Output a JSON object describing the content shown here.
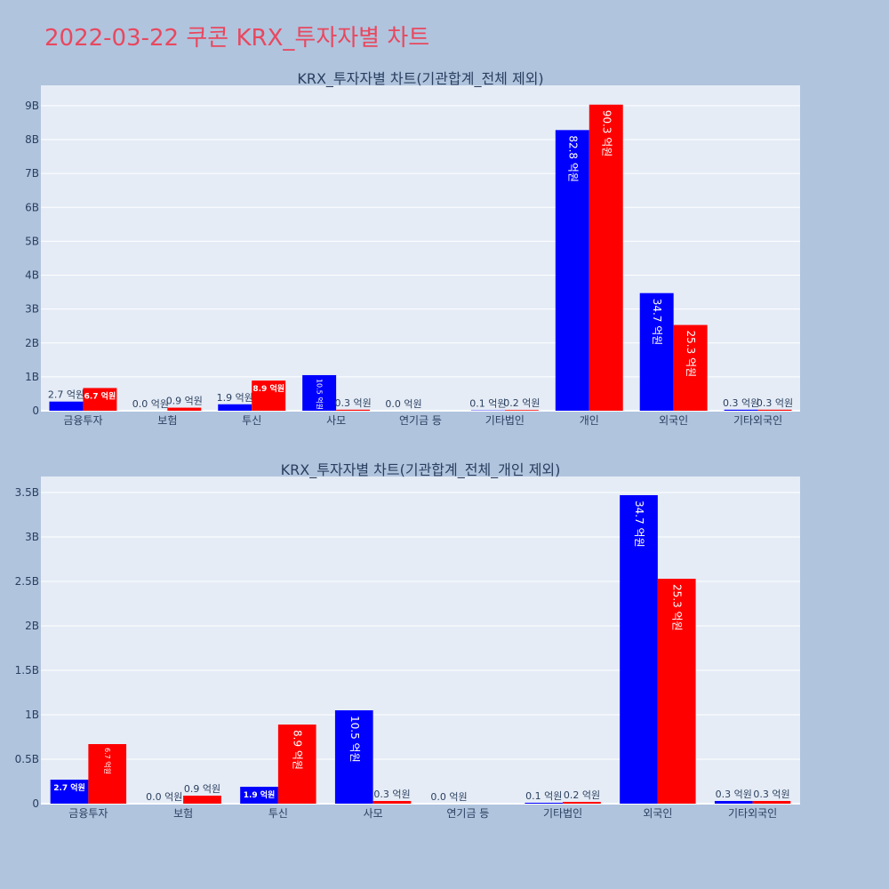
{
  "page": {
    "title": "2022-03-22 쿠콘 KRX_투자자별 차트"
  },
  "colors": {
    "background": "#b0c4de",
    "plot_background": "#e5ecf6",
    "title": "#e8485f",
    "series_1": "#0000ff",
    "series_2": "#ff0000"
  },
  "chart_data": [
    {
      "type": "bar",
      "title": "KRX_투자자별 차트(기관합계_전체 제외)",
      "categories": [
        "금융투자",
        "보험",
        "투신",
        "사모",
        "연기금 등",
        "기타법인",
        "개인",
        "외국인",
        "기타외국인"
      ],
      "series": [
        {
          "color": "#0000ff",
          "values": [
            270000000,
            0,
            190000000,
            1050000000,
            0,
            10000000,
            8280000000,
            3470000000,
            30000000
          ],
          "labels": [
            "2.7 억원",
            "0.0 억원",
            "1.9 억원",
            "10.5 억원",
            "0.0 억원",
            "0.1 억원",
            "82.8 억원",
            "34.7 억원",
            "0.3 억원"
          ]
        },
        {
          "color": "#ff0000",
          "values": [
            670000000,
            90000000,
            890000000,
            30000000,
            null,
            20000000,
            9030000000,
            2530000000,
            30000000
          ],
          "labels": [
            "6.7 억원",
            "0.9 억원",
            "8.9 억원",
            "0.3 억원",
            "",
            "0.2 억원",
            "90.3 억원",
            "25.3 억원",
            "0.3 억원"
          ]
        }
      ],
      "yticks": [
        0,
        1000000000,
        2000000000,
        3000000000,
        4000000000,
        5000000000,
        6000000000,
        7000000000,
        8000000000,
        9000000000
      ],
      "ytick_labels": [
        "0",
        "1B",
        "2B",
        "3B",
        "4B",
        "5B",
        "6B",
        "7B",
        "8B",
        "9B"
      ],
      "ylim": [
        0,
        9600000000
      ],
      "grid": true
    },
    {
      "type": "bar",
      "title": "KRX_투자자별 차트(기관합계_전체_개인 제외)",
      "categories": [
        "금융투자",
        "보험",
        "투신",
        "사모",
        "연기금 등",
        "기타법인",
        "외국인",
        "기타외국인"
      ],
      "series": [
        {
          "color": "#0000ff",
          "values": [
            270000000,
            0,
            190000000,
            1050000000,
            0,
            10000000,
            3470000000,
            30000000
          ],
          "labels": [
            "2.7 억원",
            "0.0 억원",
            "1.9 억원",
            "10.5 억원",
            "0.0 억원",
            "0.1 억원",
            "34.7 억원",
            "0.3 억원"
          ]
        },
        {
          "color": "#ff0000",
          "values": [
            670000000,
            90000000,
            890000000,
            30000000,
            null,
            20000000,
            2530000000,
            30000000
          ],
          "labels": [
            "6.7 억원",
            "0.9 억원",
            "8.9 억원",
            "0.3 억원",
            "",
            "0.2 억원",
            "25.3 억원",
            "0.3 억원"
          ]
        }
      ],
      "yticks": [
        0,
        500000000,
        1000000000,
        1500000000,
        2000000000,
        2500000000,
        3000000000,
        3500000000
      ],
      "ytick_labels": [
        "0",
        "0.5B",
        "1B",
        "1.5B",
        "2B",
        "2.5B",
        "3B",
        "3.5B"
      ],
      "ylim": [
        0,
        3680000000
      ],
      "grid": true
    }
  ]
}
